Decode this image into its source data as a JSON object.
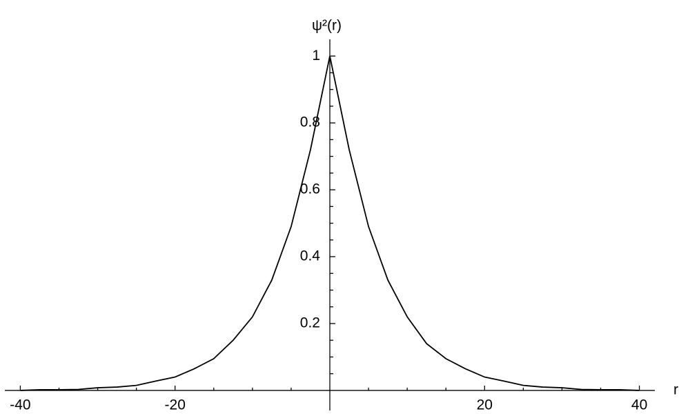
{
  "chart_data": {
    "type": "line",
    "ylabel": "ψ²(r)",
    "xlabel": "r",
    "x": [
      -40,
      -37.5,
      -35,
      -32.5,
      -30,
      -27.5,
      -25,
      -22.5,
      -20,
      -17.5,
      -15,
      -12.5,
      -10,
      -7.5,
      -5,
      -2.5,
      0,
      2.5,
      5,
      7.5,
      10,
      12.5,
      15,
      17.5,
      20,
      22.5,
      25,
      27.5,
      30,
      32.5,
      35,
      37.5,
      40
    ],
    "series": [
      {
        "name": "ψ²(r)",
        "color": "#000000",
        "values": [
          0,
          0.002,
          0.002,
          0.003,
          0.008,
          0.01,
          0.015,
          0.028,
          0.04,
          0.065,
          0.095,
          0.15,
          0.22,
          0.33,
          0.49,
          0.72,
          1,
          0.72,
          0.49,
          0.33,
          0.22,
          0.14,
          0.095,
          0.065,
          0.04,
          0.028,
          0.015,
          0.01,
          0.008,
          0.003,
          0.002,
          0.002,
          0
        ]
      }
    ],
    "xlim": [
      -42,
      42
    ],
    "ylim": [
      -0.06,
      1.05
    ],
    "xticks": [
      -40,
      -20,
      20,
      40
    ],
    "yticks": [
      0.2,
      0.4,
      0.6,
      0.8,
      1
    ],
    "xminorticks": [
      -35,
      -30,
      -25,
      -15,
      -10,
      -5,
      5,
      10,
      15,
      25,
      30,
      35
    ],
    "yminorticks": [
      0.05,
      0.1,
      0.15,
      0.25,
      0.3,
      0.35,
      0.45,
      0.5,
      0.55,
      0.65,
      0.7,
      0.75,
      0.85,
      0.9,
      0.95
    ],
    "grid": false
  }
}
